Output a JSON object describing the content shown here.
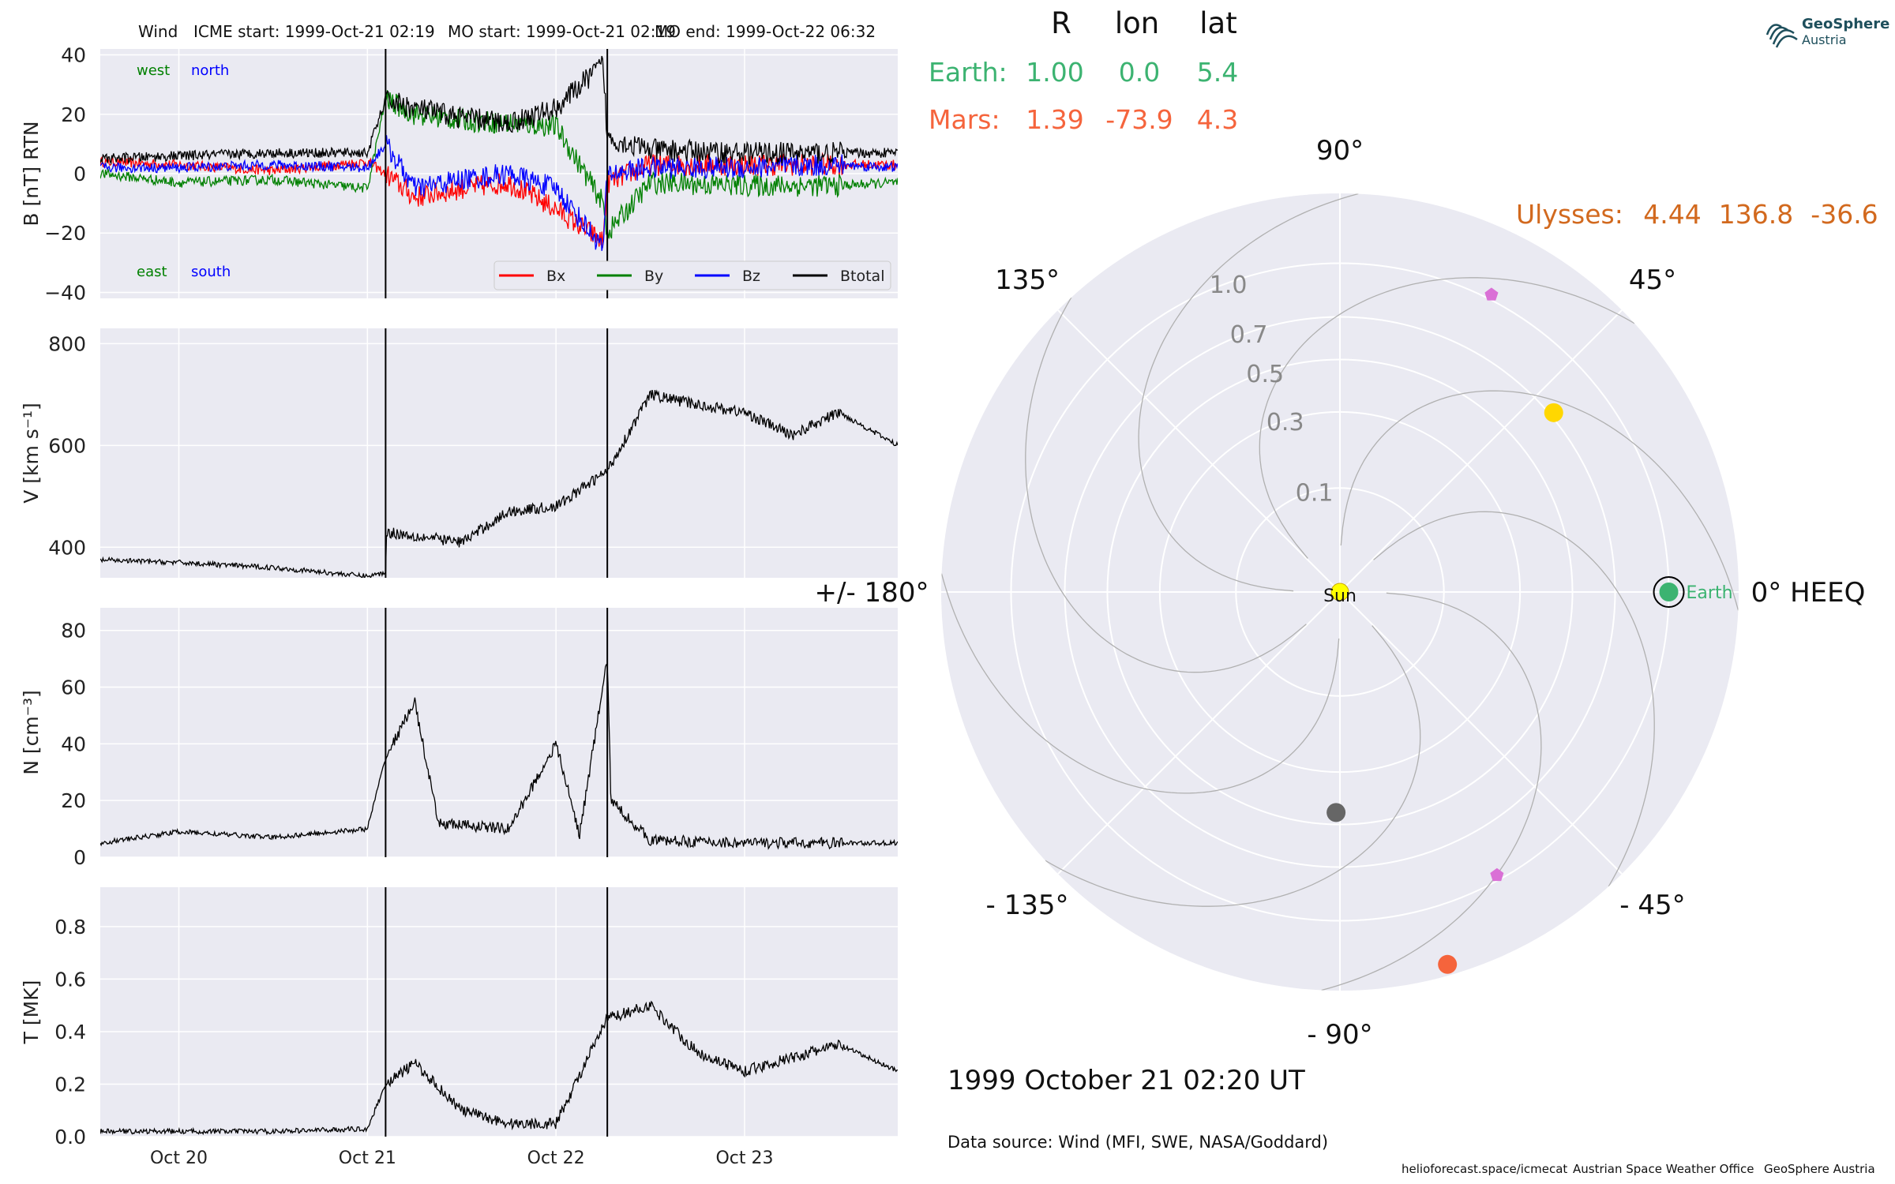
{
  "header": {
    "spacecraft": "Wind",
    "icme_start": "ICME start: 1999-Oct-21 02:19",
    "mo_start": "MO start: 1999-Oct-21 02:19",
    "mo_end": "MO end: 1999-Oct-22 06:32"
  },
  "positions_table": {
    "columns": [
      "R",
      "lon",
      "lat"
    ],
    "rows": [
      {
        "name": "Earth:",
        "R": "1.00",
        "lon": "0.0",
        "lat": "5.4",
        "color": "#3cb371"
      },
      {
        "name": "Mars:",
        "R": "1.39",
        "lon": "-73.9",
        "lat": "4.3",
        "color": "#f5643c"
      }
    ],
    "ulysses": {
      "name": "Ulysses:",
      "R": "4.44",
      "lon": "136.8",
      "lat": "-36.6",
      "color": "#d2691e"
    }
  },
  "logo": {
    "line1": "GeoSphere",
    "line2": "Austria",
    "color": "#1e4f5c"
  },
  "polar": {
    "angle_labels": [
      "90°",
      "45°",
      "0° HEEQ",
      "- 45°",
      "- 90°",
      "- 135°",
      "+/- 180°",
      "135°"
    ],
    "radial_labels": [
      "0.1",
      "0.3",
      "0.5",
      "0.7",
      "1.0"
    ],
    "sun_label": "Sun",
    "earth_label": "Earth",
    "bodies": [
      {
        "name": "Sun",
        "r": 0.0,
        "lon": 0,
        "color": "#ffff00"
      },
      {
        "name": "Mercury",
        "r": 0.45,
        "lon": -91,
        "color": "#666666"
      },
      {
        "name": "Venus",
        "r": 0.72,
        "lon": 40,
        "color": "#ffd700"
      },
      {
        "name": "Earth",
        "r": 1.0,
        "lon": 0,
        "color": "#3cb371"
      },
      {
        "name": "Mars",
        "r": 1.39,
        "lon": -73.9,
        "color": "#f5643c"
      },
      {
        "name": "spacecraft-1",
        "r": 1.03,
        "lon": 63,
        "color": "#da70d6"
      },
      {
        "name": "spacecraft-2",
        "r": 0.97,
        "lon": -61,
        "color": "#da70d6"
      }
    ]
  },
  "timestamp": "1999 October 21  02:20 UT",
  "data_source": "Data source: Wind (MFI, SWE, NASA/Goddard)",
  "footer": {
    "credit1": "helioforecast.space/icmecat",
    "credit2": "Austrian Space Weather Office",
    "credit3": "GeoSphere Austria"
  },
  "chart_data": [
    {
      "type": "line",
      "ylabel": "B [nT] RTN",
      "ylim": [
        -42,
        42
      ],
      "yticks": [
        -40,
        -20,
        0,
        20,
        40
      ],
      "x_range_days": [
        "1999-10-19 14:00",
        "1999-10-23 19:30"
      ],
      "xticks": [
        "Oct 20",
        "Oct 21",
        "Oct 22",
        "Oct 23"
      ],
      "annotations": {
        "top_left": [
          "west",
          "north"
        ],
        "bottom_left": [
          "east",
          "south"
        ]
      },
      "legend": "bottom-right",
      "series": [
        {
          "name": "Bx",
          "color": "#ff0000",
          "x": [
            "10-19 14:00",
            "10-20 00:00",
            "10-20 12:00",
            "10-21 00:00",
            "10-21 02:19",
            "10-21 06:00",
            "10-21 12:00",
            "10-21 18:00",
            "10-22 00:00",
            "10-22 06:00",
            "10-22 06:32",
            "10-22 12:00",
            "10-23 00:00",
            "10-23 12:00",
            "10-23 19:30"
          ],
          "values": [
            4,
            3,
            1,
            4,
            0,
            -8,
            -5,
            -3,
            -12,
            -23,
            -3,
            3,
            3,
            3,
            3
          ]
        },
        {
          "name": "By",
          "color": "#008000",
          "x": [
            "10-19 14:00",
            "10-20 00:00",
            "10-20 12:00",
            "10-21 00:00",
            "10-21 02:19",
            "10-21 06:00",
            "10-21 12:00",
            "10-21 18:00",
            "10-22 00:00",
            "10-22 06:00",
            "10-22 06:32",
            "10-22 12:00",
            "10-23 00:00",
            "10-23 12:00",
            "10-23 19:30"
          ],
          "values": [
            0,
            -3,
            -2,
            -5,
            25,
            20,
            18,
            17,
            16,
            -10,
            -20,
            -3,
            -4,
            -4,
            -3
          ]
        },
        {
          "name": "Bz",
          "color": "#0000ff",
          "x": [
            "10-19 14:00",
            "10-20 00:00",
            "10-20 12:00",
            "10-21 00:00",
            "10-21 02:19",
            "10-21 06:00",
            "10-21 12:00",
            "10-21 18:00",
            "10-22 00:00",
            "10-22 06:00",
            "10-22 06:32",
            "10-22 12:00",
            "10-23 00:00",
            "10-23 12:00",
            "10-23 19:30"
          ],
          "values": [
            2,
            2,
            3,
            2,
            10,
            -5,
            -2,
            0,
            -5,
            -25,
            0,
            2,
            2,
            3,
            2
          ]
        },
        {
          "name": "Btotal",
          "color": "#000000",
          "x": [
            "10-19 14:00",
            "10-20 00:00",
            "10-20 12:00",
            "10-21 00:00",
            "10-21 02:19",
            "10-21 06:00",
            "10-21 12:00",
            "10-21 18:00",
            "10-22 00:00",
            "10-22 06:00",
            "10-22 06:32",
            "10-22 12:00",
            "10-23 00:00",
            "10-23 12:00",
            "10-23 19:30"
          ],
          "values": [
            5,
            6,
            7,
            7,
            25,
            22,
            19,
            17,
            22,
            37,
            12,
            8,
            7,
            7,
            7
          ]
        }
      ]
    },
    {
      "type": "line",
      "ylabel": "V [km s⁻¹]",
      "ylim": [
        340,
        830
      ],
      "yticks": [
        400,
        600,
        800
      ],
      "xticks": [
        "Oct 20",
        "Oct 21",
        "Oct 22",
        "Oct 23"
      ],
      "series": [
        {
          "name": "V",
          "color": "#000000",
          "x": [
            "10-19 14:00",
            "10-20 00:00",
            "10-20 12:00",
            "10-21 00:00",
            "10-21 02:19",
            "10-21 02:20",
            "10-21 12:00",
            "10-21 18:00",
            "10-22 00:00",
            "10-22 06:32",
            "10-22 12:00",
            "10-22 18:00",
            "10-23 00:00",
            "10-23 06:00",
            "10-23 12:00",
            "10-23 19:30"
          ],
          "values": [
            375,
            370,
            360,
            343,
            350,
            430,
            410,
            470,
            480,
            550,
            700,
            680,
            665,
            620,
            665,
            600
          ]
        }
      ]
    },
    {
      "type": "line",
      "ylabel": "N [cm⁻³]",
      "ylim": [
        0,
        88
      ],
      "yticks": [
        0,
        20,
        40,
        60,
        80
      ],
      "xticks": [
        "Oct 20",
        "Oct 21",
        "Oct 22",
        "Oct 23"
      ],
      "series": [
        {
          "name": "N",
          "color": "#000000",
          "x": [
            "10-19 14:00",
            "10-20 00:00",
            "10-20 12:00",
            "10-21 00:00",
            "10-21 02:19",
            "10-21 06:00",
            "10-21 09:00",
            "10-21 18:00",
            "10-22 00:00",
            "10-22 03:00",
            "10-22 06:32",
            "10-22 07:00",
            "10-22 12:00",
            "10-23 00:00",
            "10-23 19:30"
          ],
          "values": [
            5,
            9,
            7,
            10,
            35,
            55,
            12,
            10,
            40,
            8,
            70,
            20,
            6,
            5,
            5
          ]
        }
      ]
    },
    {
      "type": "line",
      "ylabel": "T [MK]",
      "ylim": [
        0,
        0.95
      ],
      "yticks": [
        0.0,
        0.2,
        0.4,
        0.6,
        0.8
      ],
      "xticks": [
        "Oct 20",
        "Oct 21",
        "Oct 22",
        "Oct 23"
      ],
      "series": [
        {
          "name": "T",
          "color": "#000000",
          "x": [
            "10-19 14:00",
            "10-20 00:00",
            "10-20 12:00",
            "10-21 00:00",
            "10-21 02:19",
            "10-21 06:00",
            "10-21 12:00",
            "10-21 18:00",
            "10-22 00:00",
            "10-22 06:32",
            "10-22 12:00",
            "10-22 18:00",
            "10-23 00:00",
            "10-23 12:00",
            "10-23 19:30"
          ],
          "values": [
            0.02,
            0.02,
            0.02,
            0.03,
            0.2,
            0.28,
            0.1,
            0.05,
            0.05,
            0.45,
            0.5,
            0.32,
            0.25,
            0.35,
            0.25
          ]
        }
      ]
    }
  ]
}
